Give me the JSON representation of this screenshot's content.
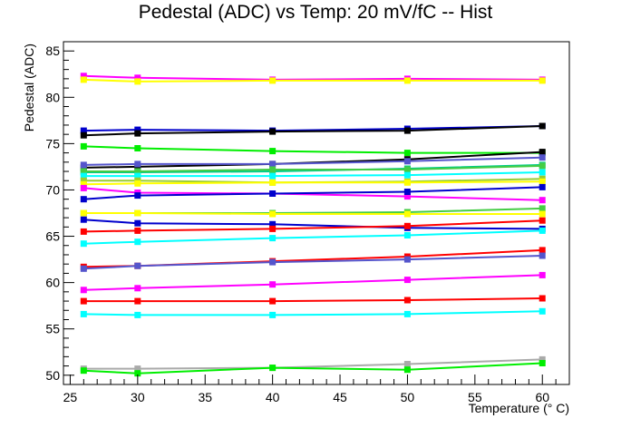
{
  "chart_data": {
    "type": "line",
    "title": "Pedestal (ADC) vs Temp: 20 mV/fC -- Hist",
    "xlabel": "Temperature (° C)",
    "ylabel": "Pedestal (ADC)",
    "xlim": [
      24.5,
      62
    ],
    "ylim": [
      49,
      86
    ],
    "x_ticks": [
      25,
      30,
      35,
      40,
      45,
      50,
      55,
      60
    ],
    "y_ticks": [
      50,
      55,
      60,
      65,
      70,
      75,
      80,
      85
    ],
    "grid": false,
    "legend": "none",
    "x": [
      26,
      30,
      40,
      50,
      60
    ],
    "series": [
      {
        "color": "#ff00ff",
        "values": [
          82.3,
          82.1,
          81.9,
          82.0,
          81.9
        ]
      },
      {
        "color": "#ffff00",
        "values": [
          81.9,
          81.7,
          81.8,
          81.8,
          81.8
        ]
      },
      {
        "color": "#0000cc",
        "values": [
          76.4,
          76.5,
          76.4,
          76.6,
          76.9
        ]
      },
      {
        "color": "#000000",
        "values": [
          75.9,
          76.1,
          76.3,
          76.4,
          76.9
        ]
      },
      {
        "color": "#00ee00",
        "values": [
          74.7,
          74.5,
          74.2,
          74.0,
          74.0
        ]
      },
      {
        "color": "#000000",
        "values": [
          72.4,
          72.5,
          72.8,
          73.3,
          74.1
        ]
      },
      {
        "color": "#5555cc",
        "values": [
          72.7,
          72.8,
          72.8,
          73.1,
          73.5
        ]
      },
      {
        "color": "#00cc88",
        "values": [
          71.9,
          71.9,
          72.0,
          72.3,
          72.7
        ]
      },
      {
        "color": "#44cc44",
        "values": [
          72.0,
          72.0,
          72.2,
          72.2,
          72.6
        ]
      },
      {
        "color": "#00ffff",
        "values": [
          71.5,
          71.5,
          71.5,
          71.6,
          71.9
        ]
      },
      {
        "color": "#99cc33",
        "values": [
          71.0,
          71.0,
          70.8,
          70.9,
          71.2
        ]
      },
      {
        "color": "#ffff00",
        "values": [
          70.6,
          70.7,
          70.8,
          70.8,
          70.9
        ]
      },
      {
        "color": "#ff00ff",
        "values": [
          70.2,
          69.7,
          69.6,
          69.3,
          68.9
        ]
      },
      {
        "color": "#0000cc",
        "values": [
          69.0,
          69.4,
          69.6,
          69.8,
          70.3
        ]
      },
      {
        "color": "#44cc44",
        "values": [
          67.5,
          67.5,
          67.5,
          67.6,
          68.0
        ]
      },
      {
        "color": "#ffff00",
        "values": [
          67.5,
          67.5,
          67.4,
          67.4,
          67.4
        ]
      },
      {
        "color": "#0000cc",
        "values": [
          66.8,
          66.4,
          66.3,
          65.9,
          65.8
        ]
      },
      {
        "color": "#ff0000",
        "values": [
          65.5,
          65.6,
          65.8,
          66.1,
          66.7
        ]
      },
      {
        "color": "#00ffff",
        "values": [
          64.2,
          64.4,
          64.8,
          65.1,
          65.6
        ]
      },
      {
        "color": "#ff0000",
        "values": [
          61.7,
          61.8,
          62.3,
          62.8,
          63.5
        ]
      },
      {
        "color": "#5555cc",
        "values": [
          61.5,
          61.8,
          62.2,
          62.5,
          62.9
        ]
      },
      {
        "color": "#ff00ff",
        "values": [
          59.2,
          59.4,
          59.8,
          60.3,
          60.8
        ]
      },
      {
        "color": "#ff0000",
        "values": [
          58.0,
          58.0,
          58.0,
          58.1,
          58.3
        ]
      },
      {
        "color": "#00ffff",
        "values": [
          56.6,
          56.5,
          56.5,
          56.6,
          56.9
        ]
      },
      {
        "color": "#aaaaaa",
        "values": [
          50.7,
          50.7,
          50.8,
          51.2,
          51.7
        ]
      },
      {
        "color": "#00ee00",
        "values": [
          50.5,
          50.2,
          50.8,
          50.6,
          51.3
        ]
      }
    ]
  }
}
